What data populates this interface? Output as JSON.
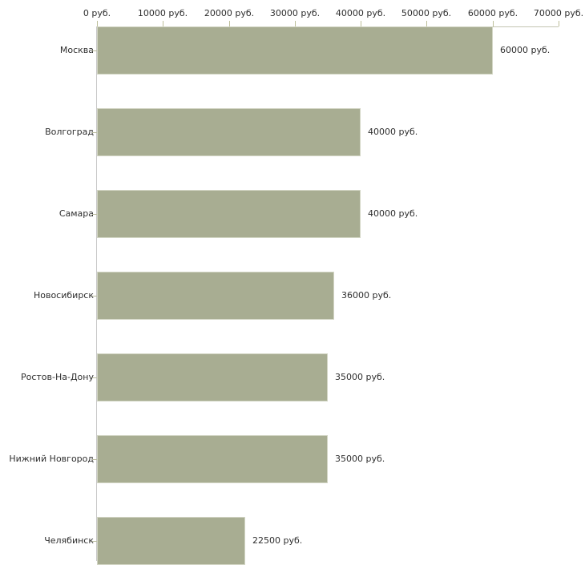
{
  "chart_data": {
    "type": "bar",
    "orientation": "horizontal",
    "title": "",
    "xlabel": "",
    "ylabel": "",
    "categories": [
      "Москва",
      "Волгоград",
      "Самара",
      "Новосибирск",
      "Ростов-На-Дону",
      "Нижний Новгород",
      "Челябинск"
    ],
    "values": [
      60000,
      40000,
      40000,
      36000,
      35000,
      35000,
      22500
    ],
    "value_labels": [
      "60000 руб.",
      "40000 руб.",
      "40000 руб.",
      "36000 руб.",
      "35000 руб.",
      "35000 руб.",
      "22500 руб."
    ],
    "x_tick_labels": [
      "0 руб.",
      "10000 руб.",
      "20000 руб.",
      "30000 руб.",
      "40000 руб.",
      "50000 руб.",
      "60000 руб.",
      "70000 руб."
    ],
    "xlim": [
      0,
      70000
    ],
    "x_tick_interval": 10000,
    "unit": "руб.",
    "grid": false,
    "legend": false,
    "bar_color": "#a8ad92",
    "bar_border_color": "#d2d5c4",
    "axis_color": "#c3c5b1",
    "tick_color": "#bdbf9a",
    "text_color": "#2e2e2e",
    "background_color": "#ffffff"
  }
}
